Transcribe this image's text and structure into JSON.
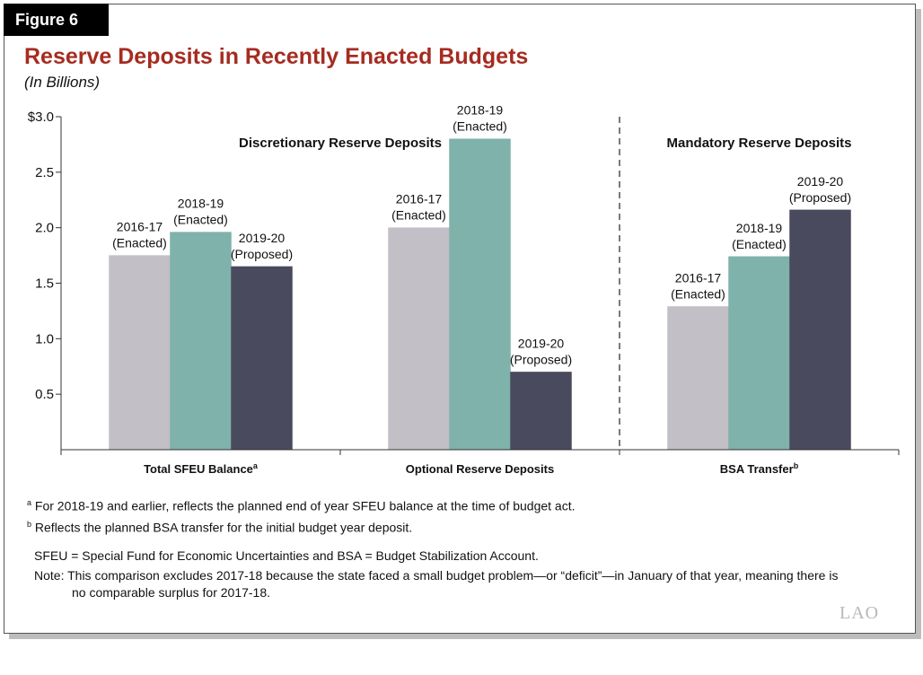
{
  "figure_label": "Figure 6",
  "chart_data": {
    "type": "bar",
    "title": "Reserve Deposits in Recently Enacted Budgets",
    "subtitle": "(In Billions)",
    "ylim": [
      0,
      3.0
    ],
    "yticks": [
      0.5,
      1.0,
      1.5,
      2.0,
      2.5,
      3.0
    ],
    "ytick_labels": [
      "0.5",
      "1.0",
      "1.5",
      "2.0",
      "2.5",
      "$3.0"
    ],
    "grid": false,
    "categories": [
      "Total SFEU Balance",
      "Optional Reserve Deposits",
      "BSA Transfer"
    ],
    "category_superscripts": [
      "a",
      "",
      "b"
    ],
    "series": [
      {
        "name": "2016-17 (Enacted)",
        "label_top": "2016-17",
        "label_bottom": "(Enacted)",
        "color": "#c2bfc6",
        "values": [
          1.75,
          2.0,
          1.29
        ]
      },
      {
        "name": "2018-19 (Enacted)",
        "label_top": "2018-19",
        "label_bottom": "(Enacted)",
        "color": "#7fb2aa",
        "values": [
          1.96,
          2.8,
          1.74
        ]
      },
      {
        "name": "2019-20 (Proposed)",
        "label_top": "2019-20",
        "label_bottom": "(Proposed)",
        "color": "#4a4a5e",
        "values": [
          1.65,
          0.7,
          2.16
        ]
      }
    ],
    "annotations": [
      {
        "text": "Discretionary Reserve Deposits"
      },
      {
        "text": "Mandatory Reserve Deposits"
      }
    ]
  },
  "footnotes": [
    {
      "marker": "a",
      "text": "For 2018-19 and earlier, reflects the planned end of year SFEU balance at the time of budget act."
    },
    {
      "marker": "b",
      "text": "Reflects the planned BSA transfer for the initial budget year deposit."
    }
  ],
  "definitions": "SFEU = Special Fund for Economic Uncertainties and BSA = Budget Stabilization Account.",
  "note": {
    "label": "Note:",
    "text": "This comparison excludes 2017-18 because the state faced a small budget problem—or “deficit”—in January of that year, meaning there is",
    "continuation": "no comparable surplus for 2017-18."
  },
  "logo_text": "LAO"
}
